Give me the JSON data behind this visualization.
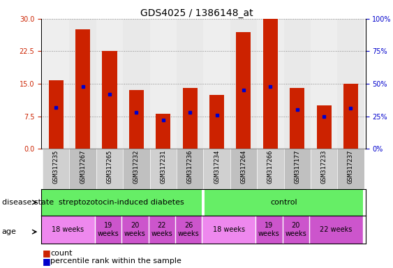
{
  "title": "GDS4025 / 1386148_at",
  "samples": [
    "GSM317235",
    "GSM317267",
    "GSM317265",
    "GSM317232",
    "GSM317231",
    "GSM317236",
    "GSM317234",
    "GSM317264",
    "GSM317266",
    "GSM317177",
    "GSM317233",
    "GSM317237"
  ],
  "counts": [
    15.8,
    27.5,
    22.5,
    13.5,
    8.0,
    14.0,
    12.5,
    27.0,
    30.0,
    14.0,
    10.0,
    15.0
  ],
  "percentiles_pct": [
    32,
    48,
    42,
    28,
    22,
    28,
    26,
    45,
    48,
    30,
    25,
    31
  ],
  "ylim_left": [
    0,
    30
  ],
  "ylim_right": [
    0,
    100
  ],
  "yticks_left": [
    0,
    7.5,
    15,
    22.5,
    30
  ],
  "yticks_right": [
    0,
    25,
    50,
    75,
    100
  ],
  "bar_color": "#cc2200",
  "dot_color": "#0000cc",
  "bar_width": 0.55,
  "col_colors": [
    "#d0d0d0",
    "#c0c0c0"
  ],
  "disease_color": "#66ee66",
  "age_color_light": "#ee88ee",
  "age_color_dark": "#cc55cc",
  "grid_color": "#888888",
  "grid_linestyle": ":",
  "grid_linewidth": 0.7,
  "title_fontsize": 10,
  "tick_fontsize": 7,
  "sample_fontsize": 6.5,
  "label_fontsize": 8,
  "disease_fontsize": 8,
  "age_fontsize": 7
}
